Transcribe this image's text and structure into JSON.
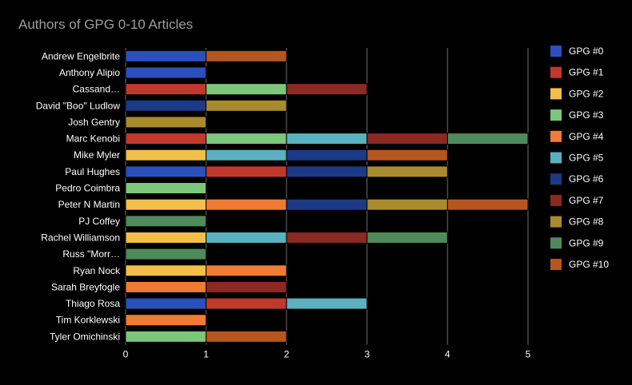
{
  "chart_data": {
    "type": "bar",
    "orientation": "horizontal",
    "stacked": true,
    "title": "Authors of GPG 0-10 Articles",
    "xlabel": "",
    "ylabel": "",
    "xlim": [
      0,
      5
    ],
    "x_ticks": [
      "0",
      "1",
      "2",
      "3",
      "4",
      "5"
    ],
    "grid": "vertical",
    "legend_position": "right",
    "categories": [
      "Andrew Engelbrite",
      "Anthony Alipio",
      "Cassand…",
      "David \"Boo\" Ludlow",
      "Josh Gentry",
      "Marc Kenobi",
      "Mike Myler",
      "Paul Hughes",
      "Pedro Coimbra",
      "Peter N Martin",
      "PJ Coffey",
      "Rachel Williamson",
      "Russ \"Morr…",
      "Ryan Nock",
      "Sarah Breyfogle",
      "Thiago Rosa",
      "Tim Korklewski",
      "Tyler Omichinski"
    ],
    "series": [
      {
        "name": "GPG #0",
        "color": "#2a4fbf",
        "values": [
          1,
          1,
          0,
          0,
          0,
          0,
          0,
          1,
          0,
          0,
          0,
          0,
          0,
          0,
          0,
          1,
          0,
          0
        ]
      },
      {
        "name": "GPG #1",
        "color": "#c0392b",
        "values": [
          0,
          0,
          1,
          0,
          0,
          1,
          0,
          1,
          0,
          0,
          0,
          0,
          0,
          0,
          0,
          1,
          0,
          0
        ]
      },
      {
        "name": "GPG #2",
        "color": "#f2c04a",
        "values": [
          0,
          0,
          0,
          0,
          0,
          0,
          1,
          0,
          0,
          1,
          0,
          1,
          0,
          1,
          0,
          0,
          0,
          0
        ]
      },
      {
        "name": "GPG #3",
        "color": "#7cc77b",
        "values": [
          0,
          0,
          1,
          0,
          0,
          1,
          0,
          0,
          1,
          0,
          0,
          0,
          0,
          0,
          0,
          0,
          0,
          1
        ]
      },
      {
        "name": "GPG #4",
        "color": "#f07b35",
        "values": [
          0,
          0,
          0,
          0,
          0,
          0,
          0,
          0,
          0,
          1,
          0,
          0,
          0,
          1,
          1,
          0,
          1,
          0
        ]
      },
      {
        "name": "GPG #5",
        "color": "#5bb1c0",
        "values": [
          0,
          0,
          0,
          0,
          0,
          1,
          1,
          0,
          0,
          0,
          0,
          1,
          0,
          0,
          0,
          1,
          0,
          0
        ]
      },
      {
        "name": "GPG #6",
        "color": "#1c3a86",
        "values": [
          0,
          0,
          0,
          1,
          0,
          0,
          1,
          1,
          0,
          1,
          0,
          0,
          0,
          0,
          0,
          0,
          0,
          0
        ]
      },
      {
        "name": "GPG #7",
        "color": "#8a2a22",
        "values": [
          0,
          0,
          1,
          0,
          0,
          1,
          0,
          0,
          0,
          0,
          0,
          1,
          0,
          0,
          1,
          0,
          0,
          0
        ]
      },
      {
        "name": "GPG #8",
        "color": "#a98b2e",
        "values": [
          0,
          0,
          0,
          1,
          1,
          0,
          0,
          1,
          0,
          1,
          0,
          0,
          0,
          0,
          0,
          0,
          0,
          0
        ]
      },
      {
        "name": "GPG #9",
        "color": "#4f8a5a",
        "values": [
          0,
          0,
          0,
          0,
          0,
          1,
          0,
          0,
          0,
          0,
          1,
          1,
          1,
          0,
          0,
          0,
          0,
          0
        ]
      },
      {
        "name": "GPG #10",
        "color": "#b5561e",
        "values": [
          1,
          0,
          0,
          0,
          0,
          0,
          1,
          0,
          0,
          1,
          0,
          0,
          0,
          0,
          0,
          0,
          0,
          1
        ]
      }
    ]
  },
  "colors": {
    "background": "#000000",
    "gridline": "#4a4a4a",
    "bar_border": "#000000",
    "title_text": "#9e9e9e",
    "label_text": "#ffffff"
  }
}
